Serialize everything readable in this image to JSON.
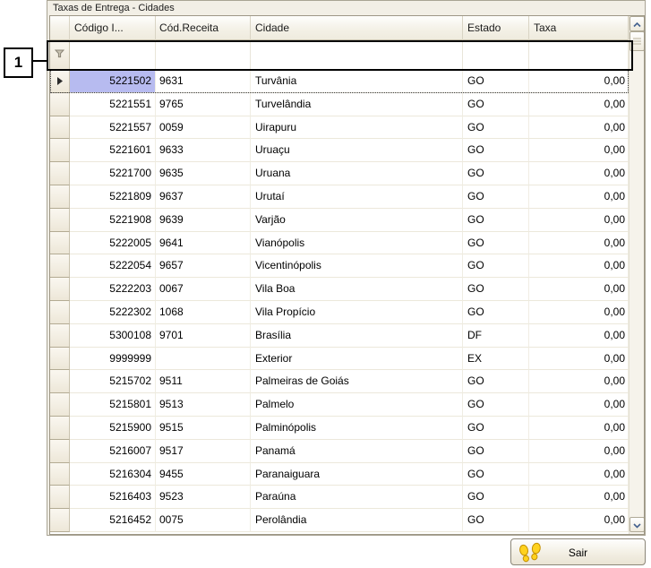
{
  "panel": {
    "title": "Taxas de Entrega - Cidades"
  },
  "callout": {
    "label": "1"
  },
  "grid": {
    "columns": [
      {
        "key": "codigo",
        "label": "Código I...",
        "align": "right"
      },
      {
        "key": "receita",
        "label": "Cód.Receita",
        "align": "left"
      },
      {
        "key": "cidade",
        "label": "Cidade",
        "align": "left"
      },
      {
        "key": "estado",
        "label": "Estado",
        "align": "left"
      },
      {
        "key": "taxa",
        "label": "Taxa",
        "align": "right"
      }
    ],
    "rows": [
      {
        "codigo": "5221502",
        "receita": "9631",
        "cidade": "Turvânia",
        "estado": "GO",
        "taxa": "0,00"
      },
      {
        "codigo": "5221551",
        "receita": "9765",
        "cidade": "Turvelândia",
        "estado": "GO",
        "taxa": "0,00"
      },
      {
        "codigo": "5221557",
        "receita": "0059",
        "cidade": "Uirapuru",
        "estado": "GO",
        "taxa": "0,00"
      },
      {
        "codigo": "5221601",
        "receita": "9633",
        "cidade": "Uruaçu",
        "estado": "GO",
        "taxa": "0,00"
      },
      {
        "codigo": "5221700",
        "receita": "9635",
        "cidade": "Uruana",
        "estado": "GO",
        "taxa": "0,00"
      },
      {
        "codigo": "5221809",
        "receita": "9637",
        "cidade": "Urutaí",
        "estado": "GO",
        "taxa": "0,00"
      },
      {
        "codigo": "5221908",
        "receita": "9639",
        "cidade": "Varjão",
        "estado": "GO",
        "taxa": "0,00"
      },
      {
        "codigo": "5222005",
        "receita": "9641",
        "cidade": "Vianópolis",
        "estado": "GO",
        "taxa": "0,00"
      },
      {
        "codigo": "5222054",
        "receita": "9657",
        "cidade": "Vicentinópolis",
        "estado": "GO",
        "taxa": "0,00"
      },
      {
        "codigo": "5222203",
        "receita": "0067",
        "cidade": "Vila Boa",
        "estado": "GO",
        "taxa": "0,00"
      },
      {
        "codigo": "5222302",
        "receita": "1068",
        "cidade": "Vila Propício",
        "estado": "GO",
        "taxa": "0,00"
      },
      {
        "codigo": "5300108",
        "receita": "9701",
        "cidade": "Brasília",
        "estado": "DF",
        "taxa": "0,00"
      },
      {
        "codigo": "9999999",
        "receita": "",
        "cidade": "Exterior",
        "estado": "EX",
        "taxa": "0,00"
      },
      {
        "codigo": "5215702",
        "receita": "9511",
        "cidade": "Palmeiras de Goiás",
        "estado": "GO",
        "taxa": "0,00"
      },
      {
        "codigo": "5215801",
        "receita": "9513",
        "cidade": "Palmelo",
        "estado": "GO",
        "taxa": "0,00"
      },
      {
        "codigo": "5215900",
        "receita": "9515",
        "cidade": "Palminópolis",
        "estado": "GO",
        "taxa": "0,00"
      },
      {
        "codigo": "5216007",
        "receita": "9517",
        "cidade": "Panamá",
        "estado": "GO",
        "taxa": "0,00"
      },
      {
        "codigo": "5216304",
        "receita": "9455",
        "cidade": "Paranaiguara",
        "estado": "GO",
        "taxa": "0,00"
      },
      {
        "codigo": "5216403",
        "receita": "9523",
        "cidade": "Paraúna",
        "estado": "GO",
        "taxa": "0,00"
      },
      {
        "codigo": "5216452",
        "receita": "0075",
        "cidade": "Perolândia",
        "estado": "GO",
        "taxa": "0,00"
      }
    ],
    "selected_row_index": 0,
    "selected_cell": "codigo",
    "filter_row_values": {
      "codigo": "",
      "receita": "",
      "cidade": "",
      "estado": "",
      "taxa": ""
    }
  },
  "footer": {
    "exit_label": "Sair"
  },
  "icons": {
    "filter": "funnel-icon",
    "row_pointer": "row-pointer-arrow-icon",
    "scroll_up": "chevron-up-icon",
    "scroll_down": "chevron-down-icon",
    "scroll_grip": "grip-lines-icon",
    "exit": "footprints-icon"
  },
  "colors": {
    "selection": "#B7BBF0",
    "panel_bg": "#F2EFE6",
    "annotation": "#000000",
    "footprint_yellow": "#FFD21E",
    "footprint_outline": "#C49000"
  }
}
